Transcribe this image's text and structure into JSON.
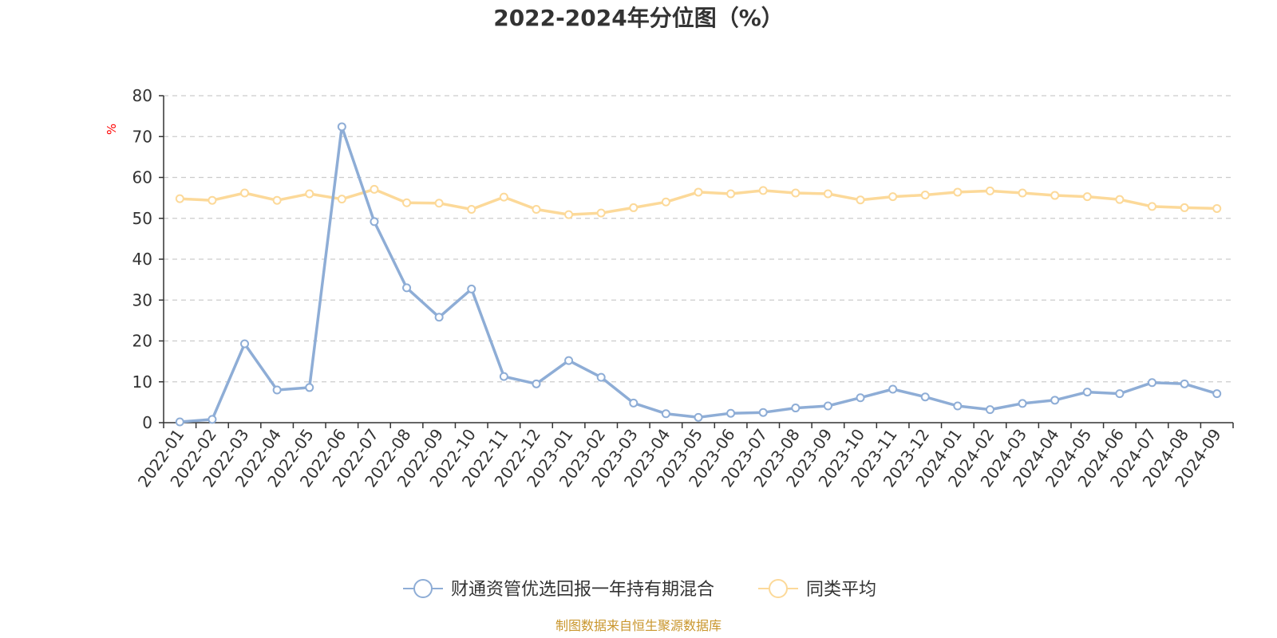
{
  "chart_data": {
    "type": "line",
    "title": "2022-2024年分位图（%）",
    "ylabel": "%",
    "ylim": [
      0,
      80
    ],
    "yticks": [
      0,
      10,
      20,
      30,
      40,
      50,
      60,
      70,
      80
    ],
    "grid": true,
    "legend_position": "bottom",
    "categories": [
      "2022-01",
      "2022-02",
      "2022-03",
      "2022-04",
      "2022-05",
      "2022-06",
      "2022-07",
      "2022-08",
      "2022-09",
      "2022-10",
      "2022-11",
      "2022-12",
      "2023-01",
      "2023-02",
      "2023-03",
      "2023-04",
      "2023-05",
      "2023-06",
      "2023-07",
      "2023-08",
      "2023-09",
      "2023-10",
      "2023-11",
      "2023-12",
      "2024-01",
      "2024-02",
      "2024-03",
      "2024-04",
      "2024-05",
      "2024-06",
      "2024-07",
      "2024-08",
      "2024-09"
    ],
    "series": [
      {
        "name": "财通资管优选回报一年持有期混合",
        "color": "#8eadd6",
        "values": [
          0.2,
          0.8,
          19.3,
          8.0,
          8.6,
          72.4,
          49.2,
          33.0,
          25.8,
          32.7,
          11.3,
          9.5,
          15.2,
          11.1,
          4.8,
          2.2,
          1.3,
          2.3,
          2.5,
          3.6,
          4.1,
          6.1,
          8.2,
          6.3,
          4.1,
          3.2,
          4.7,
          5.5,
          7.5,
          7.1,
          9.8,
          9.5,
          7.1
        ]
      },
      {
        "name": "同类平均",
        "color": "#fcd999",
        "values": [
          54.8,
          54.4,
          56.2,
          54.4,
          56.0,
          54.7,
          57.1,
          53.8,
          53.7,
          52.2,
          55.2,
          52.2,
          50.9,
          51.3,
          52.6,
          54.0,
          56.4,
          56.0,
          56.8,
          56.2,
          56.0,
          54.5,
          55.3,
          55.7,
          56.4,
          56.7,
          56.2,
          55.6,
          55.3,
          54.6,
          52.9,
          52.6,
          52.4
        ]
      }
    ],
    "source_note": "制图数据来自恒生聚源数据库"
  }
}
